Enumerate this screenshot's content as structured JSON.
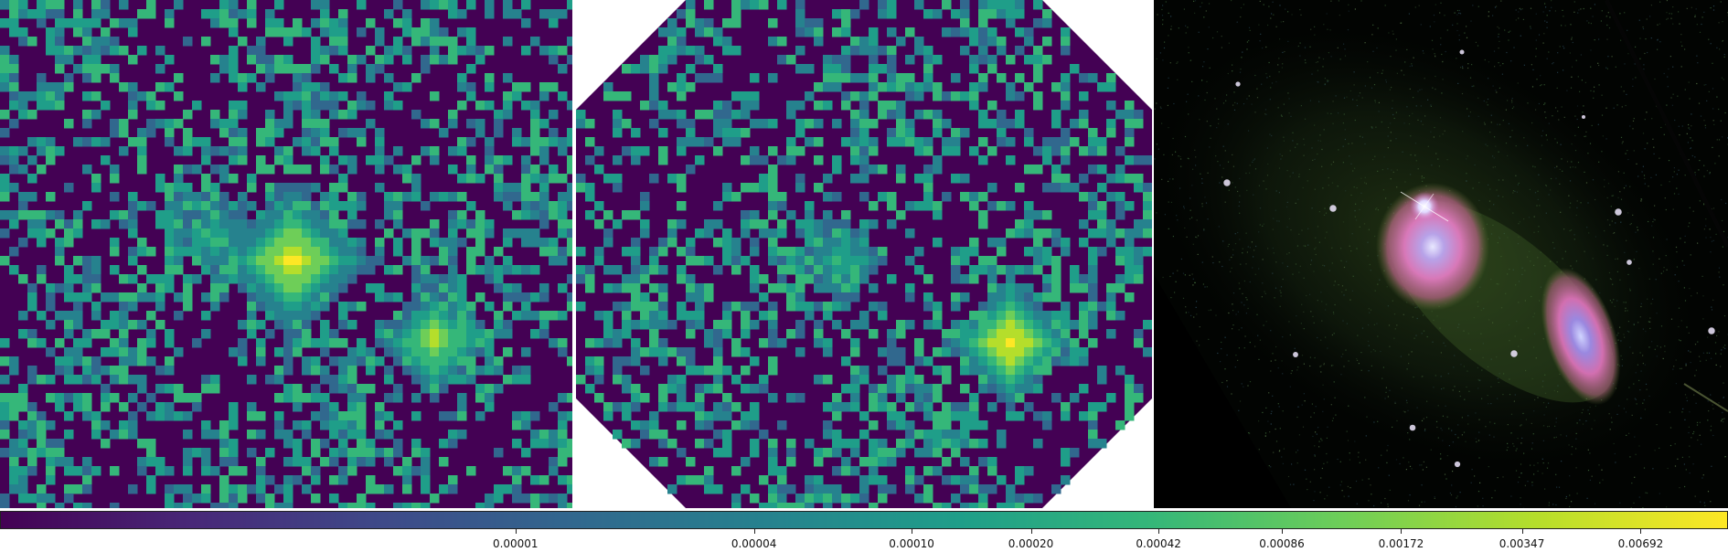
{
  "panels": [
    {
      "name": "panel-pixel-map-square"
    },
    {
      "name": "panel-pixel-map-octagon"
    },
    {
      "name": "panel-galaxy-image"
    }
  ],
  "colorbar": {
    "colormap": "viridis",
    "scale": "log",
    "range": [
      5e-07,
      0.0115
    ],
    "colors": [
      "#440154",
      "#482878",
      "#3e4a89",
      "#31688e",
      "#26828e",
      "#1f9e89",
      "#35b779",
      "#6ece58",
      "#b5de2b",
      "#fde725"
    ],
    "tick_values": [
      1e-05,
      4e-05,
      0.0001,
      0.0002,
      0.00042,
      0.00086,
      0.00172,
      0.00347,
      0.00692
    ],
    "tick_labels": [
      "0.00001",
      "0.00004",
      "0.00010",
      "0.00020",
      "0.00042",
      "0.00086",
      "0.00172",
      "0.00347",
      "0.00692"
    ]
  }
}
